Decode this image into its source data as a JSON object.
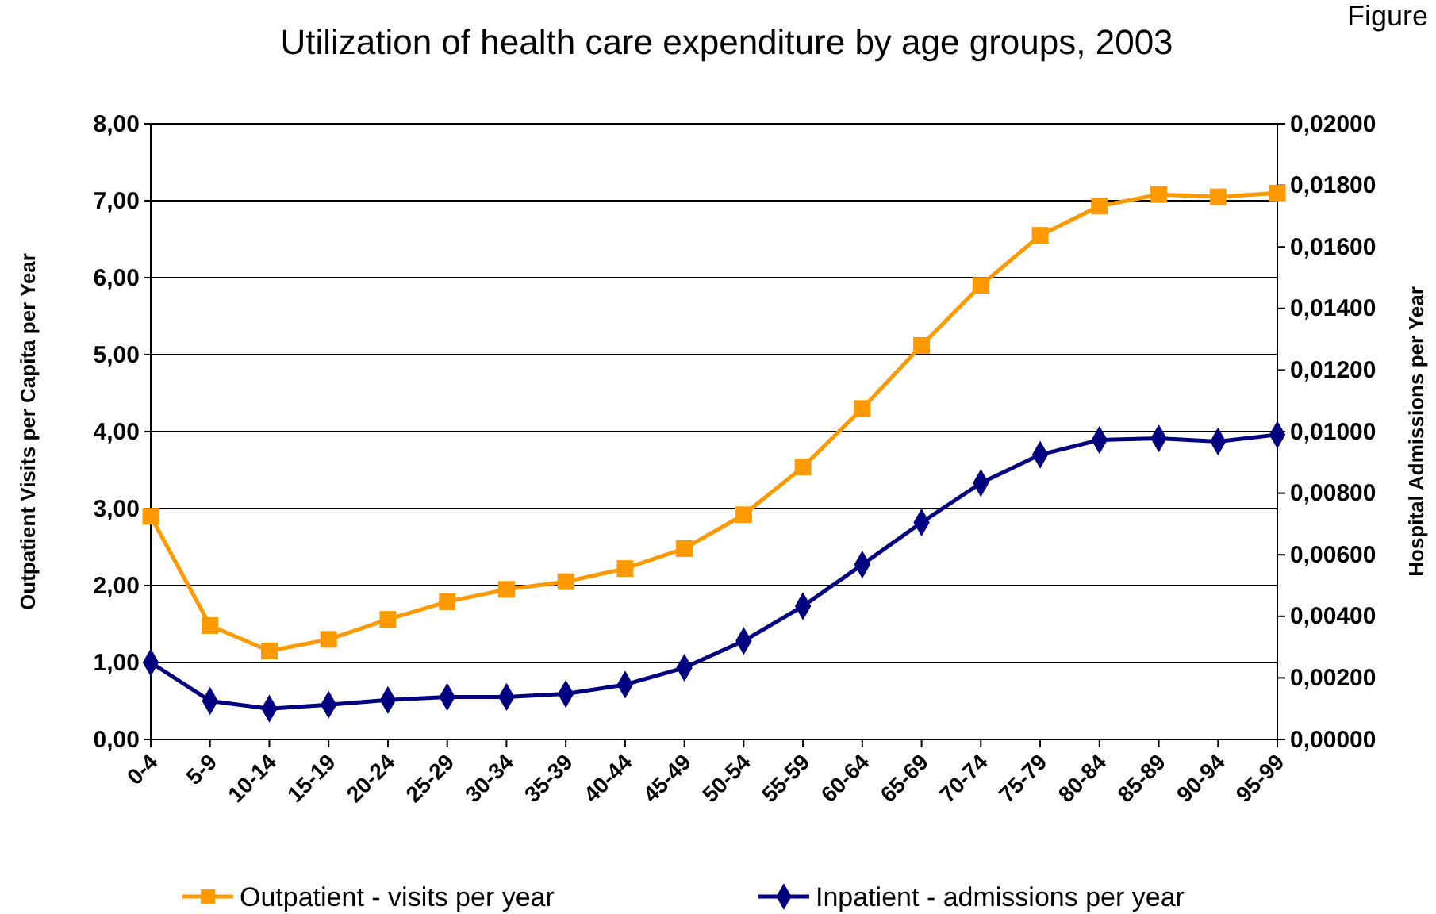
{
  "chart_data": {
    "type": "line",
    "title": "Utilization of health care expenditure by age groups, 2003",
    "ylabel": "Outpatient Visits per Capita per Year",
    "y2label": "Hospital Admissions per Year",
    "annotations": [
      "Figure"
    ],
    "categories": [
      "0-4",
      "5-9",
      "10-14",
      "15-19",
      "20-24",
      "25-29",
      "30-34",
      "35-39",
      "40-44",
      "45-49",
      "50-54",
      "55-59",
      "60-64",
      "65-69",
      "70-74",
      "75-79",
      "80-84",
      "85-89",
      "90-94",
      "95-99"
    ],
    "series": [
      {
        "name": "Outpatient - visits per year",
        "color": "#ff9900",
        "marker": "square",
        "values": [
          2.9,
          1.48,
          1.15,
          1.3,
          1.56,
          1.79,
          1.95,
          2.05,
          2.22,
          2.48,
          2.92,
          3.54,
          4.3,
          5.12,
          5.9,
          6.55,
          6.93,
          7.08,
          7.05,
          7.1
        ]
      },
      {
        "name": "Inpatient - admissions per year",
        "color": "#000080",
        "marker": "diamond",
        "axis": "y2",
        "values": [
          0.0025,
          0.00125,
          0.001,
          0.00113,
          0.00128,
          0.00138,
          0.00138,
          0.00148,
          0.00178,
          0.00233,
          0.0032,
          0.00433,
          0.00568,
          0.00705,
          0.00833,
          0.00925,
          0.00973,
          0.00978,
          0.00968,
          0.0099
        ]
      }
    ],
    "ylim": [
      0,
      8
    ],
    "yticks": [
      {
        "value": 0,
        "label": "0,00"
      },
      {
        "value": 1,
        "label": "1,00"
      },
      {
        "value": 2,
        "label": "2,00"
      },
      {
        "value": 3,
        "label": "3,00"
      },
      {
        "value": 4,
        "label": "4,00"
      },
      {
        "value": 5,
        "label": "5,00"
      },
      {
        "value": 6,
        "label": "6,00"
      },
      {
        "value": 7,
        "label": "7,00"
      },
      {
        "value": 8,
        "label": "8,00"
      }
    ],
    "y2lim": [
      0,
      0.02
    ],
    "y2ticks": [
      {
        "value": 0,
        "label": "0,00000"
      },
      {
        "value": 0.002,
        "label": "0,00200"
      },
      {
        "value": 0.004,
        "label": "0,00400"
      },
      {
        "value": 0.006,
        "label": "0,00600"
      },
      {
        "value": 0.008,
        "label": "0,00800"
      },
      {
        "value": 0.01,
        "label": "0,01000"
      },
      {
        "value": 0.012,
        "label": "0,01200"
      },
      {
        "value": 0.014,
        "label": "0,01400"
      },
      {
        "value": 0.016,
        "label": "0,01600"
      },
      {
        "value": 0.018,
        "label": "0,01800"
      },
      {
        "value": 0.02,
        "label": "0,02000"
      }
    ],
    "grid": "y",
    "legend": "bottom",
    "line_style": "solid"
  }
}
